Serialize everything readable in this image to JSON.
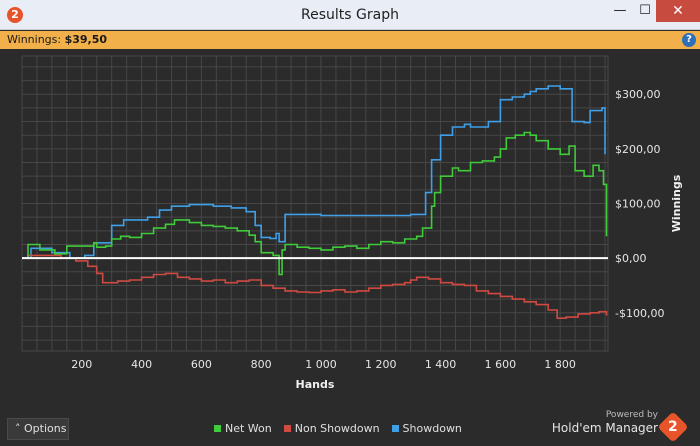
{
  "window": {
    "title": "Results Graph",
    "icon": "holdem-manager-2-icon",
    "minimize_glyph": "—",
    "maximize_glyph": "☐",
    "close_glyph": "✕"
  },
  "infobar": {
    "label": "Winnings:",
    "value": "$39,50",
    "help_glyph": "?"
  },
  "chart_data": {
    "type": "line",
    "xlabel": "Hands",
    "ylabel": "Winnings",
    "xlim": [
      0,
      1960
    ],
    "ylim": [
      -170,
      370
    ],
    "x_ticks": [
      200,
      400,
      600,
      800,
      1000,
      1200,
      1400,
      1600,
      1800
    ],
    "x_tick_labels": [
      "200",
      "400",
      "600",
      "800",
      "1 000",
      "1 200",
      "1 400",
      "1 600",
      "1 800"
    ],
    "y_ticks": [
      -100,
      0,
      100,
      200,
      300
    ],
    "y_tick_labels": [
      "-$100,00",
      "$0,00",
      "$100,00",
      "$200,00",
      "$300,00"
    ],
    "grid": true,
    "legend_position": "bottom",
    "zero_line": true,
    "colors": {
      "background": "#2b2b2b",
      "grid": "#474747",
      "zero": "#ffffff",
      "net": "#3fcb3a",
      "nonsd": "#cf4a40",
      "sd": "#3fa0e8"
    },
    "series": [
      {
        "key": "net",
        "name": "Net Won",
        "x": [
          0,
          20,
          60,
          110,
          150,
          180,
          240,
          250,
          280,
          300,
          330,
          360,
          400,
          440,
          480,
          510,
          560,
          600,
          640,
          680,
          720,
          760,
          780,
          800,
          840,
          860,
          870,
          880,
          920,
          960,
          1000,
          1040,
          1080,
          1120,
          1160,
          1200,
          1240,
          1280,
          1320,
          1340,
          1370,
          1380,
          1400,
          1440,
          1460,
          1500,
          1540,
          1580,
          1600,
          1620,
          1650,
          1680,
          1700,
          1720,
          1760,
          1800,
          1830,
          1850,
          1880,
          1910,
          1930,
          1945,
          1955
        ],
        "y": [
          0,
          25,
          15,
          8,
          22,
          22,
          28,
          20,
          22,
          35,
          40,
          38,
          45,
          55,
          62,
          70,
          65,
          60,
          58,
          55,
          50,
          42,
          30,
          10,
          5,
          -30,
          15,
          25,
          20,
          18,
          15,
          20,
          22,
          18,
          25,
          30,
          28,
          35,
          40,
          55,
          95,
          120,
          150,
          165,
          160,
          175,
          178,
          185,
          200,
          220,
          225,
          230,
          225,
          215,
          200,
          190,
          205,
          160,
          150,
          170,
          160,
          135,
          40
        ]
      },
      {
        "key": "nonsd",
        "name": "Non Showdown",
        "x": [
          0,
          20,
          80,
          130,
          180,
          220,
          250,
          270,
          320,
          360,
          400,
          440,
          480,
          520,
          560,
          600,
          640,
          680,
          720,
          760,
          800,
          840,
          880,
          920,
          960,
          1000,
          1040,
          1080,
          1120,
          1160,
          1200,
          1240,
          1280,
          1300,
          1320,
          1360,
          1400,
          1440,
          1480,
          1520,
          1560,
          1600,
          1640,
          1680,
          1720,
          1760,
          1790,
          1820,
          1860,
          1900,
          1930,
          1955
        ],
        "y": [
          0,
          5,
          5,
          0,
          -5,
          -15,
          -28,
          -45,
          -42,
          -40,
          -35,
          -30,
          -28,
          -35,
          -38,
          -42,
          -40,
          -45,
          -42,
          -40,
          -50,
          -55,
          -60,
          -62,
          -63,
          -60,
          -58,
          -62,
          -60,
          -55,
          -50,
          -48,
          -45,
          -40,
          -35,
          -38,
          -45,
          -48,
          -50,
          -60,
          -65,
          -70,
          -75,
          -80,
          -85,
          -95,
          -110,
          -108,
          -102,
          -100,
          -98,
          -105
        ]
      },
      {
        "key": "sd",
        "name": "Showdown",
        "x": [
          0,
          30,
          60,
          100,
          160,
          210,
          240,
          260,
          300,
          340,
          420,
          460,
          500,
          560,
          600,
          640,
          700,
          750,
          780,
          800,
          830,
          850,
          860,
          880,
          920,
          1000,
          1100,
          1200,
          1300,
          1350,
          1370,
          1400,
          1440,
          1480,
          1500,
          1560,
          1600,
          1640,
          1680,
          1700,
          1720,
          1760,
          1800,
          1820,
          1840,
          1880,
          1900,
          1940,
          1950
        ],
        "y": [
          0,
          18,
          18,
          10,
          0,
          5,
          28,
          28,
          60,
          70,
          75,
          88,
          95,
          98,
          98,
          95,
          92,
          85,
          60,
          38,
          36,
          45,
          30,
          80,
          80,
          78,
          78,
          78,
          80,
          120,
          180,
          225,
          240,
          245,
          240,
          250,
          290,
          295,
          300,
          305,
          310,
          315,
          310,
          310,
          250,
          248,
          270,
          275,
          190
        ]
      }
    ]
  },
  "footer": {
    "options_label": "Options",
    "options_glyph": "˄",
    "legend": [
      {
        "label": "Net Won",
        "color": "#3fcb3a"
      },
      {
        "label": "Non Showdown",
        "color": "#cf4a40"
      },
      {
        "label": "Showdown",
        "color": "#3fa0e8"
      }
    ],
    "powered_by": "Powered by",
    "brand_name": "Hold'em Manager",
    "brand_logo_glyph": "2"
  }
}
